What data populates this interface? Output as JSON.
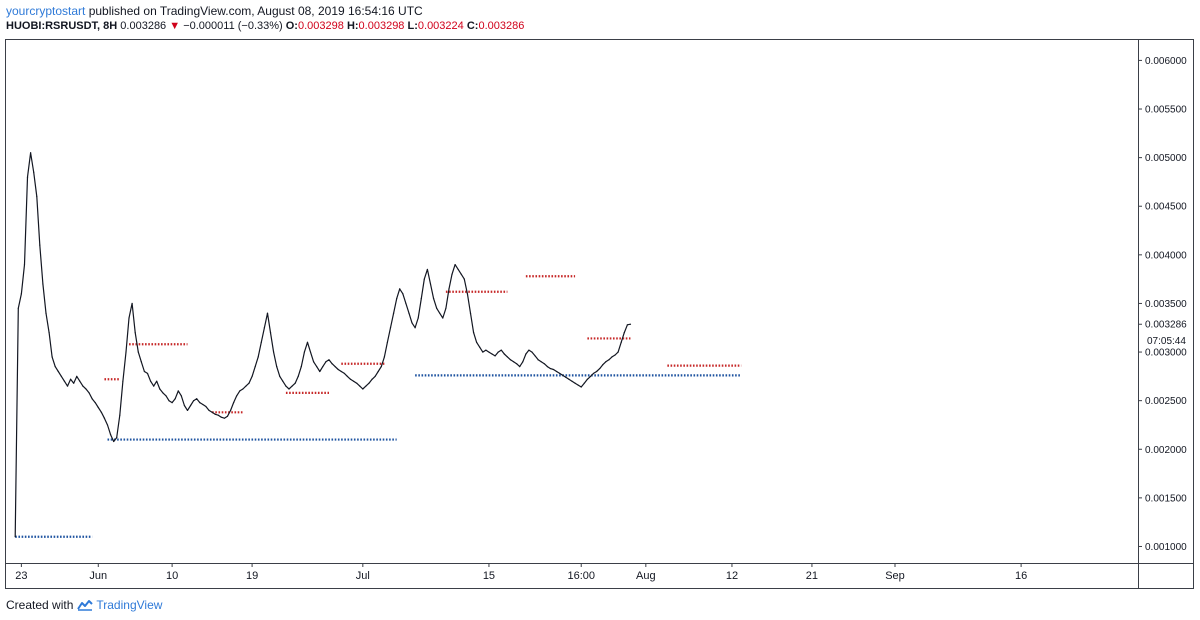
{
  "header": {
    "author": "yourcryptostart",
    "published_text": "published on TradingView.com, August 08, 2019 16:54:16 UTC",
    "symbol": "HUOBI:RSRUSDT, 8H",
    "last": "0.003286",
    "arrow": "▼",
    "change": "−0.000011 (−0.33%)",
    "o_label": "O:",
    "o_value": "0.003298",
    "h_label": "H:",
    "h_value": "0.003298",
    "l_label": "L:",
    "l_value": "0.003224",
    "c_label": "C:",
    "c_value": "0.003286"
  },
  "footer": {
    "created_with": "Created with",
    "brand": "TradingView"
  },
  "chart_data": {
    "type": "line",
    "series": [
      {
        "values": [
          0.0011,
          0.00345,
          0.0036,
          0.0039,
          0.0048,
          0.00505,
          0.00485,
          0.0046,
          0.0041,
          0.0037,
          0.0034,
          0.0032,
          0.00295,
          0.00285,
          0.0028,
          0.00275,
          0.0027,
          0.00265,
          0.00272,
          0.00268,
          0.00275,
          0.0027,
          0.00265,
          0.00262,
          0.00258,
          0.00252,
          0.00248,
          0.00243,
          0.00238,
          0.00232,
          0.00225,
          0.00215,
          0.00208,
          0.00212,
          0.00235,
          0.0027,
          0.003,
          0.00335,
          0.0035,
          0.0032,
          0.003,
          0.0029,
          0.0028,
          0.00278,
          0.0027,
          0.00265,
          0.0027,
          0.00262,
          0.00258,
          0.00255,
          0.0025,
          0.00248,
          0.00252,
          0.0026,
          0.00255,
          0.00245,
          0.0024,
          0.00245,
          0.0025,
          0.00252,
          0.00248,
          0.00246,
          0.00244,
          0.0024,
          0.00238,
          0.00236,
          0.00235,
          0.00233,
          0.00232,
          0.00234,
          0.0024,
          0.00248,
          0.00255,
          0.0026,
          0.00262,
          0.00265,
          0.00268,
          0.00275,
          0.00285,
          0.00295,
          0.0031,
          0.00325,
          0.0034,
          0.0032,
          0.003,
          0.00285,
          0.00275,
          0.0027,
          0.00265,
          0.00262,
          0.00265,
          0.00268,
          0.00275,
          0.00285,
          0.003,
          0.0031,
          0.003,
          0.0029,
          0.00285,
          0.0028,
          0.00285,
          0.0029,
          0.00292,
          0.00288,
          0.00285,
          0.00282,
          0.0028,
          0.00278,
          0.00275,
          0.00272,
          0.0027,
          0.00268,
          0.00265,
          0.00262,
          0.00265,
          0.00268,
          0.00272,
          0.00275,
          0.0028,
          0.00285,
          0.00295,
          0.0031,
          0.00325,
          0.0034,
          0.00355,
          0.00365,
          0.0036,
          0.0035,
          0.0034,
          0.0033,
          0.00325,
          0.00335,
          0.00355,
          0.00375,
          0.00385,
          0.0037,
          0.00355,
          0.00345,
          0.0034,
          0.00335,
          0.00345,
          0.00365,
          0.0038,
          0.0039,
          0.00385,
          0.0038,
          0.00375,
          0.0036,
          0.0034,
          0.0032,
          0.0031,
          0.00305,
          0.003,
          0.00302,
          0.003,
          0.00298,
          0.00296,
          0.003,
          0.00302,
          0.00298,
          0.00295,
          0.00292,
          0.0029,
          0.00288,
          0.00285,
          0.0029,
          0.00298,
          0.00302,
          0.003,
          0.00296,
          0.00292,
          0.0029,
          0.00288,
          0.00285,
          0.00283,
          0.00282,
          0.0028,
          0.00278,
          0.00276,
          0.00274,
          0.00272,
          0.0027,
          0.00268,
          0.00266,
          0.00264,
          0.00268,
          0.00272,
          0.00275,
          0.00278,
          0.0028,
          0.00283,
          0.00287,
          0.0029,
          0.00292,
          0.00295,
          0.00297,
          0.003,
          0.0031,
          0.0032,
          0.00328,
          0.003286
        ]
      }
    ],
    "support_levels": [
      {
        "start": 0,
        "end": 25,
        "value": 0.0011
      },
      {
        "start": 30,
        "end": 124,
        "value": 0.0021
      },
      {
        "start": 130,
        "end": 236,
        "value": 0.00276
      }
    ],
    "resistance_levels": [
      {
        "start": 29,
        "end": 34,
        "value": 0.00272
      },
      {
        "start": 37,
        "end": 56,
        "value": 0.00308
      },
      {
        "start": 64,
        "end": 74,
        "value": 0.00238
      },
      {
        "start": 88,
        "end": 102,
        "value": 0.00258
      },
      {
        "start": 106,
        "end": 120,
        "value": 0.00288
      },
      {
        "start": 140,
        "end": 160,
        "value": 0.00362
      },
      {
        "start": 166,
        "end": 182,
        "value": 0.00378
      },
      {
        "start": 186,
        "end": 200,
        "value": 0.00314
      },
      {
        "start": 212,
        "end": 236,
        "value": 0.00286
      }
    ],
    "x_ticks": [
      {
        "label": "23",
        "index": 2
      },
      {
        "label": "Jun",
        "index": 27
      },
      {
        "label": "10",
        "index": 51
      },
      {
        "label": "19",
        "index": 77
      },
      {
        "label": "Jul",
        "index": 113
      },
      {
        "label": "15",
        "index": 154
      },
      {
        "label": "16:00",
        "index": 184
      },
      {
        "label": "Aug",
        "index": 205
      },
      {
        "label": "12",
        "index": 233
      },
      {
        "label": "21",
        "index": 259
      },
      {
        "label": "Sep",
        "index": 286
      },
      {
        "label": "16",
        "index": 327
      }
    ],
    "x_range": [
      -3,
      365
    ],
    "y_ticks": [
      "0.006000",
      "0.005500",
      "0.005000",
      "0.004500",
      "0.004000",
      "0.003500",
      "0.003000",
      "0.002500",
      "0.002000",
      "0.001500",
      "0.001000"
    ],
    "y_tick_values": [
      0.006,
      0.0055,
      0.005,
      0.0045,
      0.004,
      0.0035,
      0.003,
      0.0025,
      0.002,
      0.0015,
      0.001
    ],
    "ylim": [
      0.00083,
      0.00621
    ],
    "last_price_label": "0.003286",
    "last_price_value": 0.003286,
    "countdown_label": "07:05:44",
    "grid": false,
    "colors": {
      "price": "#131722",
      "support": "#1e53a0",
      "resistance": "#c62828",
      "text_blue": "#2f7ad8",
      "text_red": "#d0021b"
    }
  }
}
